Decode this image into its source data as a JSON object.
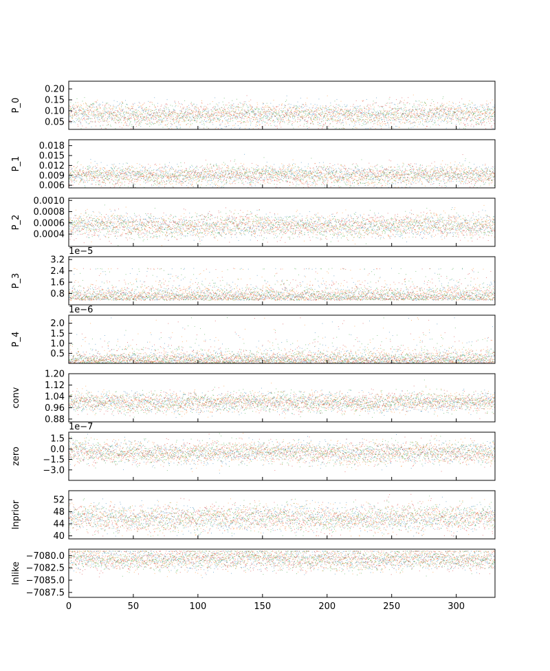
{
  "figure": {
    "type": "trace-plot",
    "colors": {
      "axis": "#000000",
      "series": [
        "#1f77b4",
        "#ff7f0e",
        "#2ca02c",
        "#d62728"
      ]
    }
  },
  "chart_data": [
    {
      "type": "scatter",
      "ylabel": "P_0",
      "offset_text": "",
      "ylim": [
        0.015,
        0.235
      ],
      "yticks": [
        0.05,
        0.1,
        0.15,
        0.2
      ],
      "ytick_labels": [
        "0.05",
        "0.10",
        "0.15",
        "0.20"
      ],
      "xlim": [
        0,
        330
      ],
      "trace": {
        "center": 0.085,
        "spread": 0.026,
        "min": 0.02,
        "max": 0.21
      },
      "xtick_labels_visible": false
    },
    {
      "type": "scatter",
      "ylabel": "P_1",
      "offset_text": "",
      "ylim": [
        0.0052,
        0.0198
      ],
      "yticks": [
        0.006,
        0.009,
        0.012,
        0.015,
        0.018
      ],
      "ytick_labels": [
        "0.006",
        "0.009",
        "0.012",
        "0.015",
        "0.018"
      ],
      "xlim": [
        0,
        330
      ],
      "trace": {
        "center": 0.0092,
        "spread": 0.0015,
        "min": 0.0054,
        "max": 0.018
      },
      "xtick_labels_visible": false
    },
    {
      "type": "scatter",
      "ylabel": "P_2",
      "offset_text": "",
      "ylim": [
        0.00018,
        0.00104
      ],
      "yticks": [
        0.0004,
        0.0006,
        0.0008,
        0.001
      ],
      "ytick_labels": [
        "0.0004",
        "0.0006",
        "0.0008",
        "0.0010"
      ],
      "xlim": [
        0,
        330
      ],
      "trace": {
        "center": 0.00055,
        "spread": 0.000105,
        "min": 0.0002,
        "max": 0.001
      },
      "xtick_labels_visible": false
    },
    {
      "type": "scatter",
      "ylabel": "P_3",
      "offset_text": "1e−5",
      "ylim": [
        0.0,
        3.4
      ],
      "yticks": [
        0.8,
        1.6,
        2.4,
        3.2
      ],
      "ytick_labels": [
        "0.8",
        "1.6",
        "2.4",
        "3.2"
      ],
      "xlim": [
        0,
        330
      ],
      "trace": {
        "center": 0.35,
        "spread": 0.55,
        "min": 0.0,
        "max": 2.6
      },
      "xtick_labels_visible": false
    },
    {
      "type": "scatter",
      "ylabel": "P_4",
      "offset_text": "1e−6",
      "ylim": [
        0.0,
        2.4
      ],
      "yticks": [
        0.5,
        1.0,
        1.5,
        2.0
      ],
      "ytick_labels": [
        "0.5",
        "1.0",
        "1.5",
        "2.0"
      ],
      "xlim": [
        0,
        330
      ],
      "trace": {
        "center": 0.02,
        "spread": 0.35,
        "min": 0.0,
        "max": 2.3
      },
      "xtick_labels_visible": false
    },
    {
      "type": "scatter",
      "ylabel": "conv",
      "offset_text": "",
      "ylim": [
        0.86,
        1.2
      ],
      "yticks": [
        0.88,
        0.96,
        1.04,
        1.12,
        1.2
      ],
      "ytick_labels": [
        "0.88",
        "0.96",
        "1.04",
        "1.12",
        "1.20"
      ],
      "xlim": [
        0,
        330
      ],
      "trace": {
        "center": 1.0,
        "spread": 0.035,
        "min": 0.87,
        "max": 1.16
      },
      "xtick_labels_visible": false
    },
    {
      "type": "scatter",
      "ylabel": "zero",
      "offset_text": "1e−7",
      "ylim": [
        -4.5,
        2.4
      ],
      "yticks": [
        -3.0,
        -1.5,
        0.0,
        1.5
      ],
      "ytick_labels": [
        "−3.0",
        "−1.5",
        "0.0",
        "1.5"
      ],
      "xlim": [
        0,
        330
      ],
      "trace": {
        "center": -0.5,
        "spread": 0.8,
        "min": -4.0,
        "max": 2.3
      },
      "xtick_labels_visible": false
    },
    {
      "type": "scatter",
      "ylabel": "lnprior",
      "offset_text": "",
      "ylim": [
        39.0,
        55.0
      ],
      "yticks": [
        40,
        44,
        48,
        52
      ],
      "ytick_labels": [
        "40",
        "44",
        "48",
        "52"
      ],
      "xlim": [
        0,
        330
      ],
      "trace": {
        "center": 46.0,
        "spread": 2.2,
        "min": 40.0,
        "max": 54.0
      },
      "xtick_labels_visible": false
    },
    {
      "type": "scatter",
      "ylabel": "lnlike",
      "offset_text": "",
      "ylim": [
        -7088.5,
        -7078.7
      ],
      "yticks": [
        -7087.5,
        -7085.0,
        -7082.5,
        -7080.0
      ],
      "ytick_labels": [
        "−7087.5",
        "−7085.0",
        "−7082.5",
        "−7080.0"
      ],
      "xlim": [
        0,
        330
      ],
      "trace": {
        "center": -7080.7,
        "spread": 1.1,
        "min": -7088.3,
        "max": -7079.0
      },
      "xtick_labels_visible": true,
      "xticks": [
        0,
        50,
        100,
        150,
        200,
        250,
        300
      ],
      "xtick_labels": [
        "0",
        "50",
        "100",
        "150",
        "200",
        "250",
        "300"
      ]
    }
  ]
}
